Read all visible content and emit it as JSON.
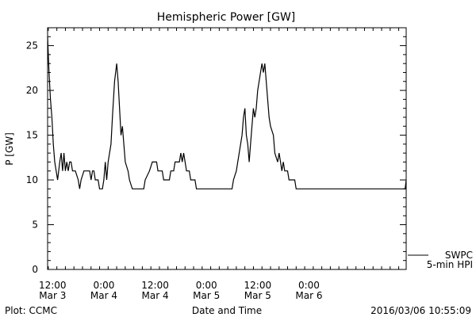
{
  "chart_data": {
    "type": "line",
    "title": "Hemispheric Power [GW]",
    "ylabel": "P [GW]",
    "xlabel": "Date and Time",
    "ylim": [
      0,
      27
    ],
    "yticks": [
      0,
      5,
      10,
      15,
      20,
      25
    ],
    "xlim": [
      "2016-03-03 10:50",
      "2016-03-06 22:45"
    ],
    "xticks": [
      {
        "t": "2016-03-03 12:00",
        "time": "12:00",
        "date": "Mar 3"
      },
      {
        "t": "2016-03-04 00:00",
        "time": "0:00",
        "date": "Mar 4"
      },
      {
        "t": "2016-03-04 12:00",
        "time": "12:00",
        "date": "Mar 4"
      },
      {
        "t": "2016-03-05 00:00",
        "time": "0:00",
        "date": "Mar 5"
      },
      {
        "t": "2016-03-05 12:00",
        "time": "12:00",
        "date": "Mar 5"
      },
      {
        "t": "2016-03-06 00:00",
        "time": "0:00",
        "date": "Mar 6"
      }
    ],
    "legend": {
      "line1": "SWPC",
      "line2": "5-min HPI",
      "placement": "bottom-right outside"
    },
    "series": [
      {
        "values": [
          [
            "2016-03-03 10:50",
            26
          ],
          [
            "2016-03-03 11:10",
            22
          ],
          [
            "2016-03-03 11:30",
            19
          ],
          [
            "2016-03-03 11:50",
            17
          ],
          [
            "2016-03-03 12:10",
            14
          ],
          [
            "2016-03-03 12:30",
            12
          ],
          [
            "2016-03-03 12:50",
            11
          ],
          [
            "2016-03-03 13:10",
            10
          ],
          [
            "2016-03-03 13:40",
            12
          ],
          [
            "2016-03-03 14:00",
            13
          ],
          [
            "2016-03-03 14:20",
            11
          ],
          [
            "2016-03-03 14:40",
            13
          ],
          [
            "2016-03-03 15:00",
            11
          ],
          [
            "2016-03-03 15:20",
            12
          ],
          [
            "2016-03-03 15:40",
            11
          ],
          [
            "2016-03-03 16:00",
            12
          ],
          [
            "2016-03-03 16:20",
            12
          ],
          [
            "2016-03-03 16:40",
            11
          ],
          [
            "2016-03-03 17:20",
            11
          ],
          [
            "2016-03-03 18:00",
            10
          ],
          [
            "2016-03-03 18:20",
            9
          ],
          [
            "2016-03-03 18:40",
            10
          ],
          [
            "2016-03-03 19:20",
            11
          ],
          [
            "2016-03-03 20:40",
            11
          ],
          [
            "2016-03-03 21:00",
            10
          ],
          [
            "2016-03-03 21:20",
            11
          ],
          [
            "2016-03-03 21:40",
            11
          ],
          [
            "2016-03-03 22:00",
            10
          ],
          [
            "2016-03-03 22:40",
            10
          ],
          [
            "2016-03-03 23:00",
            9
          ],
          [
            "2016-03-03 23:40",
            9
          ],
          [
            "2016-03-04 00:00",
            10
          ],
          [
            "2016-03-04 00:20",
            12
          ],
          [
            "2016-03-04 00:40",
            10
          ],
          [
            "2016-03-04 01:00",
            12
          ],
          [
            "2016-03-04 01:20",
            13
          ],
          [
            "2016-03-04 01:40",
            14
          ],
          [
            "2016-03-04 02:00",
            17
          ],
          [
            "2016-03-04 02:30",
            21
          ],
          [
            "2016-03-04 03:00",
            23
          ],
          [
            "2016-03-04 03:20",
            21
          ],
          [
            "2016-03-04 03:40",
            18
          ],
          [
            "2016-03-04 04:00",
            15
          ],
          [
            "2016-03-04 04:20",
            16
          ],
          [
            "2016-03-04 04:40",
            14
          ],
          [
            "2016-03-04 05:00",
            12
          ],
          [
            "2016-03-04 05:40",
            11
          ],
          [
            "2016-03-04 06:00",
            10
          ],
          [
            "2016-03-04 06:40",
            9
          ],
          [
            "2016-03-04 09:20",
            9
          ],
          [
            "2016-03-04 09:40",
            10
          ],
          [
            "2016-03-04 10:40",
            11
          ],
          [
            "2016-03-04 11:20",
            12
          ],
          [
            "2016-03-04 12:20",
            12
          ],
          [
            "2016-03-04 12:40",
            11
          ],
          [
            "2016-03-04 13:40",
            11
          ],
          [
            "2016-03-04 14:00",
            10
          ],
          [
            "2016-03-04 15:20",
            10
          ],
          [
            "2016-03-04 15:40",
            11
          ],
          [
            "2016-03-04 16:20",
            11
          ],
          [
            "2016-03-04 16:40",
            12
          ],
          [
            "2016-03-04 17:40",
            12
          ],
          [
            "2016-03-04 18:00",
            13
          ],
          [
            "2016-03-04 18:20",
            12
          ],
          [
            "2016-03-04 18:40",
            13
          ],
          [
            "2016-03-04 19:00",
            12
          ],
          [
            "2016-03-04 19:20",
            11
          ],
          [
            "2016-03-04 20:00",
            11
          ],
          [
            "2016-03-04 20:20",
            10
          ],
          [
            "2016-03-04 21:20",
            10
          ],
          [
            "2016-03-04 21:40",
            9
          ],
          [
            "2016-03-05 06:00",
            9
          ],
          [
            "2016-03-05 06:20",
            10
          ],
          [
            "2016-03-05 07:00",
            11
          ],
          [
            "2016-03-05 07:20",
            12
          ],
          [
            "2016-03-05 08:00",
            14
          ],
          [
            "2016-03-05 08:20",
            15
          ],
          [
            "2016-03-05 08:40",
            17
          ],
          [
            "2016-03-05 09:00",
            18
          ],
          [
            "2016-03-05 09:20",
            15
          ],
          [
            "2016-03-05 09:40",
            14
          ],
          [
            "2016-03-05 10:00",
            12
          ],
          [
            "2016-03-05 10:20",
            14
          ],
          [
            "2016-03-05 10:40",
            16
          ],
          [
            "2016-03-05 11:00",
            18
          ],
          [
            "2016-03-05 11:20",
            17
          ],
          [
            "2016-03-05 11:40",
            18
          ],
          [
            "2016-03-05 12:00",
            20
          ],
          [
            "2016-03-05 12:20",
            21
          ],
          [
            "2016-03-05 12:40",
            22
          ],
          [
            "2016-03-05 13:00",
            23
          ],
          [
            "2016-03-05 13:20",
            22
          ],
          [
            "2016-03-05 13:40",
            23
          ],
          [
            "2016-03-05 14:00",
            21
          ],
          [
            "2016-03-05 14:20",
            19
          ],
          [
            "2016-03-05 14:40",
            17
          ],
          [
            "2016-03-05 15:00",
            16
          ],
          [
            "2016-03-05 15:40",
            15
          ],
          [
            "2016-03-05 16:00",
            13
          ],
          [
            "2016-03-05 16:40",
            12
          ],
          [
            "2016-03-05 17:00",
            13
          ],
          [
            "2016-03-05 17:20",
            12
          ],
          [
            "2016-03-05 17:40",
            11
          ],
          [
            "2016-03-05 18:00",
            12
          ],
          [
            "2016-03-05 18:20",
            11
          ],
          [
            "2016-03-05 19:00",
            11
          ],
          [
            "2016-03-05 19:20",
            10
          ],
          [
            "2016-03-05 20:40",
            10
          ],
          [
            "2016-03-05 21:00",
            9
          ],
          [
            "2016-03-06 22:30",
            9
          ],
          [
            "2016-03-06 22:45",
            10
          ]
        ]
      }
    ]
  },
  "footer": {
    "left": "Plot: CCMC",
    "center": "Date and Time",
    "right": "2016/03/06 10:55:09"
  }
}
